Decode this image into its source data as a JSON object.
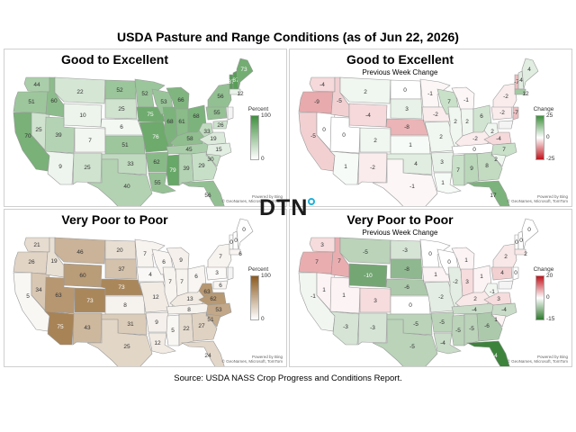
{
  "title": "USDA Pasture and Range Conditions (as of Jun 22, 2026)",
  "source": "Source:  USDA NASS Crop Progress and Conditions Report.",
  "logo_text": "DTN",
  "credit": {
    "line1": "Powered by Bing",
    "line2": "© GeoNames, Microsoft, TomTom"
  },
  "colors": {
    "green": "#3f8f3e",
    "brown": "#8b5a1e",
    "red": "#c0141c",
    "white": "#ffffff"
  },
  "chart_data": [
    {
      "type": "choropleth",
      "title": "Good to Excellent",
      "subtitle": "",
      "legend": {
        "title": "Percent",
        "max": "100",
        "min": "0"
      },
      "scale": {
        "min": 0,
        "max": 100,
        "colors": [
          "#ffffff",
          "#3f8f3e"
        ]
      },
      "values": {
        "WA": 44,
        "OR": 51,
        "CA": 70,
        "ID": 60,
        "NV": 25,
        "MT": 22,
        "WY": 10,
        "UT": 39,
        "AZ": 9,
        "CO": 7,
        "NM": 25,
        "ND": 52,
        "SD": 25,
        "NE": 6,
        "KS": 51,
        "OK": 33,
        "TX": 40,
        "MN": 52,
        "IA": 75,
        "MO": 76,
        "AR": 62,
        "LA": 55,
        "WI": 53,
        "IL": 68,
        "MS": 79,
        "MI": 66,
        "IN": 61,
        "KY": 58,
        "TN": 45,
        "AL": 39,
        "GA": 29,
        "FL": 56,
        "OH": 68,
        "WV": 33,
        "VA": 19,
        "NC": 15,
        "SC": 30,
        "PA": 55,
        "NY": 56,
        "VT": 87,
        "NH": 87,
        "ME": 73,
        "MA": 12,
        "MD": 26
      }
    },
    {
      "type": "choropleth",
      "title": "Good to Excellent",
      "subtitle": "Previous Week Change",
      "legend": {
        "title": "Change",
        "max": "25",
        "mid": "0",
        "min": "-25"
      },
      "scale": {
        "min": -25,
        "max": 25,
        "colors": [
          "#c0141c",
          "#ffffff",
          "#3f8f3e"
        ]
      },
      "values": {
        "WA": -4,
        "OR": -9,
        "CA": -5,
        "ID": -5,
        "NV": 0,
        "MT": 2,
        "WY": -4,
        "UT": 0,
        "AZ": 1,
        "CO": 2,
        "NM": -2,
        "ND": 0,
        "SD": 3,
        "NE": -8,
        "KS": 1,
        "OK": 4,
        "TX": -1,
        "MN": -1,
        "IA": -2,
        "MO": 2,
        "AR": 3,
        "LA": 1,
        "WI": 7,
        "IL": 2,
        "MS": 7,
        "MI": -1,
        "IN": 2,
        "KY": -2,
        "TN": 0,
        "AL": 9,
        "GA": 8,
        "FL": 17,
        "OH": 6,
        "WV": 2,
        "VA": -4,
        "NC": 7,
        "SC": 2,
        "PA": -2,
        "NY": -2,
        "VT": -7,
        "NH": 4,
        "ME": 4,
        "MA": 12,
        "NJ": -7
      }
    },
    {
      "type": "choropleth",
      "title": "Very Poor to Poor",
      "subtitle": "",
      "legend": {
        "title": "Percent",
        "max": "100",
        "min": "0"
      },
      "scale": {
        "min": 0,
        "max": 100,
        "colors": [
          "#ffffff",
          "#8b5a1e"
        ]
      },
      "values": {
        "WA": 21,
        "OR": 26,
        "CA": 5,
        "ID": 19,
        "NV": 34,
        "MT": 46,
        "WY": 60,
        "UT": 63,
        "AZ": 75,
        "CO": 73,
        "NM": 43,
        "ND": 20,
        "SD": 37,
        "NE": 73,
        "KS": 8,
        "OK": 31,
        "TX": 25,
        "MN": 7,
        "IA": 4,
        "MO": 12,
        "AR": 9,
        "LA": 12,
        "WI": 6,
        "IL": 7,
        "MS": 5,
        "MI": 9,
        "IN": 7,
        "KY": 13,
        "TN": 8,
        "AL": 22,
        "GA": 27,
        "FL": 24,
        "OH": 6,
        "WV": 63,
        "VA": 62,
        "NC": 53,
        "SC": 51,
        "PA": 3,
        "NY": 7,
        "VT": 0,
        "NH": 0,
        "ME": 0,
        "MA": 6,
        "MD": 6
      }
    },
    {
      "type": "choropleth",
      "title": "Very Poor to Poor",
      "subtitle": "Previous Week Change",
      "legend": {
        "title": "Change",
        "max": "20",
        "mid": "0",
        "min": "-15"
      },
      "scale": {
        "min": -15,
        "max": 20,
        "colors": [
          "#2f7a2e",
          "#ffffff",
          "#c0141c"
        ]
      },
      "values": {
        "WA": 3,
        "OR": 7,
        "CA": -1,
        "ID": 7,
        "NV": 1,
        "MT": -5,
        "WY": -10,
        "UT": 1,
        "AZ": -3,
        "CO": 3,
        "NM": -3,
        "ND": -3,
        "SD": -8,
        "NE": -6,
        "KS": 0,
        "OK": -5,
        "TX": -5,
        "MN": 0,
        "IA": 1,
        "MO": -2,
        "AR": -5,
        "LA": -4,
        "WI": 0,
        "IL": -2,
        "MS": -5,
        "MI": 1,
        "IN": 3,
        "KY": 2,
        "TN": -4,
        "AL": -5,
        "GA": -6,
        "FL": -14,
        "OH": 1,
        "WV": -1,
        "VA": 3,
        "NC": -4,
        "SC": 1,
        "PA": 4,
        "NY": 2,
        "VT": 0,
        "NH": 0,
        "ME": 0,
        "MA": 2,
        "NJ": 0
      }
    }
  ]
}
